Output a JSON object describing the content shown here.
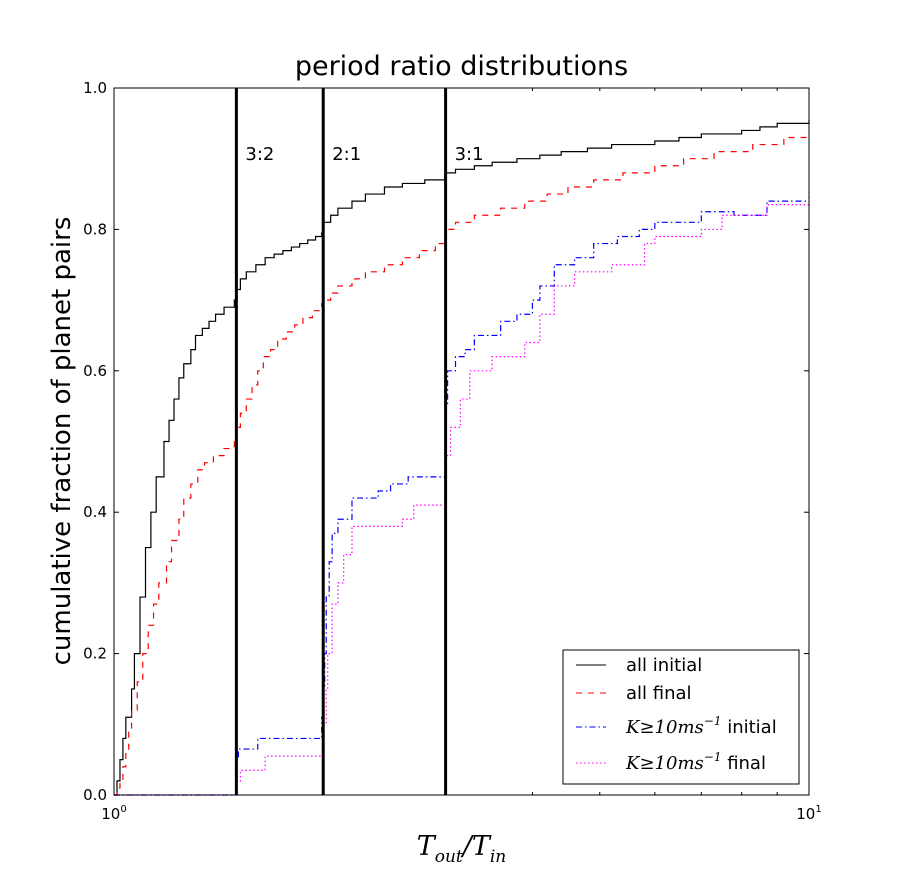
{
  "chart_data": {
    "type": "line",
    "title": "period ratio distributions",
    "ylabel": "cumulative fraction of planet pairs",
    "xlabel": {
      "base": "T",
      "sub1": "out",
      "slash": "/",
      "base2": "T",
      "sub2": "in"
    },
    "xscale": "log",
    "xlim": [
      1,
      10
    ],
    "ylim": [
      0,
      1
    ],
    "x_ticks": [
      {
        "value": 1,
        "base": "10",
        "exp": "0"
      },
      {
        "value": 10,
        "base": "10",
        "exp": "1"
      }
    ],
    "y_ticks": [
      {
        "value": 0.0,
        "label": "0.0"
      },
      {
        "value": 0.2,
        "label": "0.2"
      },
      {
        "value": 0.4,
        "label": "0.4"
      },
      {
        "value": 0.6,
        "label": "0.6"
      },
      {
        "value": 0.8,
        "label": "0.8"
      },
      {
        "value": 1.0,
        "label": "1.0"
      }
    ],
    "resonances": [
      {
        "x": 1.5,
        "label": "3:2"
      },
      {
        "x": 2.0,
        "label": "2:1"
      },
      {
        "x": 3.0,
        "label": "3:1"
      }
    ],
    "legend_position": "lower-right",
    "series": [
      {
        "name": "all initial",
        "color": "#000000",
        "style": "solid",
        "legend": {
          "text": "all initial"
        },
        "points": [
          [
            1.0,
            0.0
          ],
          [
            1.01,
            0.02
          ],
          [
            1.02,
            0.05
          ],
          [
            1.03,
            0.08
          ],
          [
            1.04,
            0.11
          ],
          [
            1.06,
            0.15
          ],
          [
            1.07,
            0.2
          ],
          [
            1.09,
            0.28
          ],
          [
            1.11,
            0.35
          ],
          [
            1.13,
            0.4
          ],
          [
            1.15,
            0.45
          ],
          [
            1.18,
            0.5
          ],
          [
            1.2,
            0.53
          ],
          [
            1.22,
            0.56
          ],
          [
            1.24,
            0.59
          ],
          [
            1.26,
            0.61
          ],
          [
            1.29,
            0.63
          ],
          [
            1.31,
            0.65
          ],
          [
            1.34,
            0.66
          ],
          [
            1.37,
            0.67
          ],
          [
            1.4,
            0.68
          ],
          [
            1.44,
            0.69
          ],
          [
            1.49,
            0.7
          ],
          [
            1.5,
            0.715
          ],
          [
            1.52,
            0.73
          ],
          [
            1.55,
            0.74
          ],
          [
            1.6,
            0.75
          ],
          [
            1.65,
            0.76
          ],
          [
            1.7,
            0.765
          ],
          [
            1.75,
            0.77
          ],
          [
            1.8,
            0.775
          ],
          [
            1.85,
            0.78
          ],
          [
            1.9,
            0.785
          ],
          [
            1.95,
            0.79
          ],
          [
            1.99,
            0.795
          ],
          [
            2.0,
            0.81
          ],
          [
            2.05,
            0.82
          ],
          [
            2.1,
            0.83
          ],
          [
            2.2,
            0.84
          ],
          [
            2.3,
            0.85
          ],
          [
            2.45,
            0.86
          ],
          [
            2.6,
            0.865
          ],
          [
            2.8,
            0.87
          ],
          [
            2.99,
            0.875
          ],
          [
            3.0,
            0.88
          ],
          [
            3.1,
            0.885
          ],
          [
            3.3,
            0.89
          ],
          [
            3.5,
            0.895
          ],
          [
            3.8,
            0.9
          ],
          [
            4.1,
            0.905
          ],
          [
            4.4,
            0.91
          ],
          [
            4.8,
            0.915
          ],
          [
            5.2,
            0.92
          ],
          [
            6.0,
            0.925
          ],
          [
            6.5,
            0.93
          ],
          [
            7.0,
            0.935
          ],
          [
            8.0,
            0.94
          ],
          [
            8.5,
            0.945
          ],
          [
            9.0,
            0.95
          ],
          [
            10.0,
            0.955
          ]
        ]
      },
      {
        "name": "all final",
        "color": "#ff0000",
        "style": "dashed",
        "legend": {
          "text": "all final"
        },
        "points": [
          [
            1.0,
            0.0
          ],
          [
            1.01,
            0.01
          ],
          [
            1.02,
            0.02
          ],
          [
            1.03,
            0.04
          ],
          [
            1.04,
            0.06
          ],
          [
            1.05,
            0.09
          ],
          [
            1.06,
            0.12
          ],
          [
            1.08,
            0.16
          ],
          [
            1.1,
            0.2
          ],
          [
            1.12,
            0.24
          ],
          [
            1.14,
            0.27
          ],
          [
            1.16,
            0.3
          ],
          [
            1.19,
            0.33
          ],
          [
            1.21,
            0.36
          ],
          [
            1.24,
            0.39
          ],
          [
            1.26,
            0.42
          ],
          [
            1.29,
            0.44
          ],
          [
            1.32,
            0.46
          ],
          [
            1.35,
            0.47
          ],
          [
            1.39,
            0.48
          ],
          [
            1.44,
            0.49
          ],
          [
            1.49,
            0.5
          ],
          [
            1.5,
            0.52
          ],
          [
            1.52,
            0.54
          ],
          [
            1.55,
            0.56
          ],
          [
            1.58,
            0.58
          ],
          [
            1.61,
            0.6
          ],
          [
            1.64,
            0.62
          ],
          [
            1.68,
            0.63
          ],
          [
            1.72,
            0.645
          ],
          [
            1.77,
            0.655
          ],
          [
            1.82,
            0.665
          ],
          [
            1.87,
            0.675
          ],
          [
            1.93,
            0.685
          ],
          [
            1.99,
            0.695
          ],
          [
            2.0,
            0.7
          ],
          [
            2.05,
            0.71
          ],
          [
            2.1,
            0.72
          ],
          [
            2.2,
            0.73
          ],
          [
            2.3,
            0.74
          ],
          [
            2.45,
            0.75
          ],
          [
            2.6,
            0.76
          ],
          [
            2.75,
            0.77
          ],
          [
            2.9,
            0.78
          ],
          [
            2.99,
            0.79
          ],
          [
            3.0,
            0.8
          ],
          [
            3.1,
            0.81
          ],
          [
            3.3,
            0.82
          ],
          [
            3.6,
            0.83
          ],
          [
            3.9,
            0.84
          ],
          [
            4.2,
            0.85
          ],
          [
            4.5,
            0.86
          ],
          [
            4.9,
            0.87
          ],
          [
            5.4,
            0.88
          ],
          [
            6.0,
            0.89
          ],
          [
            6.6,
            0.9
          ],
          [
            7.3,
            0.91
          ],
          [
            8.3,
            0.92
          ],
          [
            9.2,
            0.93
          ],
          [
            10.0,
            0.935
          ]
        ]
      },
      {
        "name": "K>=10ms^-1 initial",
        "color": "#0000ff",
        "style": "dashdot",
        "legend": {
          "math_pre": "K",
          "op": "≥",
          "math_num": "10",
          "math_unit": "ms",
          "exp": "−1",
          "text": " initial"
        },
        "points": [
          [
            1.0,
            0.0
          ],
          [
            1.499,
            0.0
          ],
          [
            1.5,
            0.05
          ],
          [
            1.51,
            0.065
          ],
          [
            1.6,
            0.065
          ],
          [
            1.61,
            0.08
          ],
          [
            1.98,
            0.08
          ],
          [
            1.99,
            0.11
          ],
          [
            2.0,
            0.15
          ],
          [
            2.01,
            0.2
          ],
          [
            2.02,
            0.28
          ],
          [
            2.04,
            0.33
          ],
          [
            2.06,
            0.37
          ],
          [
            2.1,
            0.39
          ],
          [
            2.2,
            0.42
          ],
          [
            2.4,
            0.43
          ],
          [
            2.5,
            0.44
          ],
          [
            2.65,
            0.45
          ],
          [
            2.99,
            0.45
          ],
          [
            3.0,
            0.55
          ],
          [
            3.02,
            0.6
          ],
          [
            3.1,
            0.62
          ],
          [
            3.2,
            0.63
          ],
          [
            3.3,
            0.65
          ],
          [
            3.6,
            0.67
          ],
          [
            3.8,
            0.68
          ],
          [
            4.0,
            0.7
          ],
          [
            4.1,
            0.72
          ],
          [
            4.3,
            0.75
          ],
          [
            4.6,
            0.76
          ],
          [
            4.9,
            0.78
          ],
          [
            5.3,
            0.79
          ],
          [
            5.7,
            0.8
          ],
          [
            6.0,
            0.81
          ],
          [
            7.0,
            0.825
          ],
          [
            7.8,
            0.82
          ],
          [
            8.7,
            0.84
          ],
          [
            10.0,
            0.84
          ]
        ]
      },
      {
        "name": "K>=10ms^-1 final",
        "color": "#ff00ff",
        "style": "dotted",
        "legend": {
          "math_pre": "K",
          "op": "≥",
          "math_num": "10",
          "math_unit": "ms",
          "exp": "−1",
          "text": " final"
        },
        "points": [
          [
            1.0,
            0.0
          ],
          [
            1.499,
            0.0
          ],
          [
            1.5,
            0.02
          ],
          [
            1.52,
            0.035
          ],
          [
            1.6,
            0.035
          ],
          [
            1.65,
            0.055
          ],
          [
            1.99,
            0.055
          ],
          [
            2.0,
            0.1
          ],
          [
            2.02,
            0.15
          ],
          [
            2.03,
            0.2
          ],
          [
            2.06,
            0.27
          ],
          [
            2.1,
            0.3
          ],
          [
            2.14,
            0.34
          ],
          [
            2.2,
            0.38
          ],
          [
            2.5,
            0.38
          ],
          [
            2.6,
            0.39
          ],
          [
            2.7,
            0.41
          ],
          [
            2.99,
            0.42
          ],
          [
            3.0,
            0.48
          ],
          [
            3.05,
            0.52
          ],
          [
            3.15,
            0.56
          ],
          [
            3.25,
            0.6
          ],
          [
            3.5,
            0.62
          ],
          [
            3.9,
            0.64
          ],
          [
            4.1,
            0.68
          ],
          [
            4.3,
            0.72
          ],
          [
            4.6,
            0.74
          ],
          [
            5.2,
            0.75
          ],
          [
            5.8,
            0.78
          ],
          [
            6.0,
            0.79
          ],
          [
            7.0,
            0.8
          ],
          [
            7.5,
            0.82
          ],
          [
            8.7,
            0.835
          ],
          [
            10.0,
            0.855
          ]
        ]
      }
    ]
  }
}
